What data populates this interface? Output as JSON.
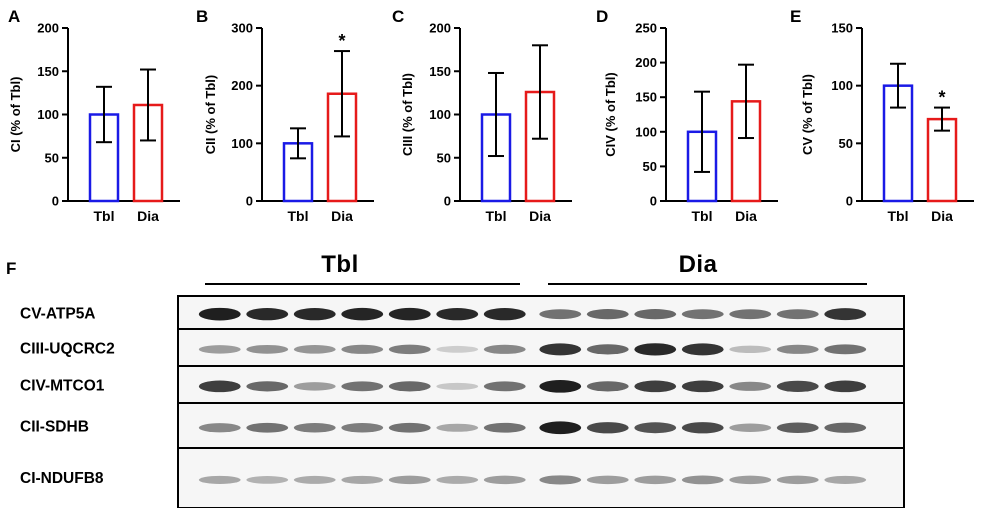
{
  "chart_data": [
    {
      "type": "bar",
      "panel": "A",
      "ylabel": "CI (% of Tbl)",
      "categories": [
        "Tbl",
        "Dia"
      ],
      "values": [
        100,
        111
      ],
      "errors": [
        32,
        41
      ],
      "ylim": [
        0,
        200
      ],
      "yticks": [
        0,
        50,
        100,
        150,
        200
      ],
      "significance": [
        "",
        ""
      ],
      "bar_colors": [
        "#1a1ae6",
        "#e61a1a"
      ]
    },
    {
      "type": "bar",
      "panel": "B",
      "ylabel": "CII (% of Tbl)",
      "categories": [
        "Tbl",
        "Dia"
      ],
      "values": [
        100,
        186
      ],
      "errors": [
        26,
        74
      ],
      "ylim": [
        0,
        300
      ],
      "yticks": [
        0,
        100,
        200,
        300
      ],
      "significance": [
        "",
        "*"
      ],
      "bar_colors": [
        "#1a1ae6",
        "#e61a1a"
      ]
    },
    {
      "type": "bar",
      "panel": "C",
      "ylabel": "CIII (% of Tbl)",
      "categories": [
        "Tbl",
        "Dia"
      ],
      "values": [
        100,
        126
      ],
      "errors": [
        48,
        54
      ],
      "ylim": [
        0,
        200
      ],
      "yticks": [
        0,
        50,
        100,
        150,
        200
      ],
      "significance": [
        "",
        ""
      ],
      "bar_colors": [
        "#1a1ae6",
        "#e61a1a"
      ]
    },
    {
      "type": "bar",
      "panel": "D",
      "ylabel": "CIV (% of Tbl)",
      "categories": [
        "Tbl",
        "Dia"
      ],
      "values": [
        100,
        144
      ],
      "errors": [
        58,
        53
      ],
      "ylim": [
        0,
        250
      ],
      "yticks": [
        0,
        50,
        100,
        150,
        200,
        250
      ],
      "significance": [
        "",
        ""
      ],
      "bar_colors": [
        "#1a1ae6",
        "#e61a1a"
      ]
    },
    {
      "type": "bar",
      "panel": "E",
      "ylabel": "CV (% of Tbl)",
      "categories": [
        "Tbl",
        "Dia"
      ],
      "values": [
        100,
        71
      ],
      "errors": [
        19,
        10
      ],
      "ylim": [
        0,
        150
      ],
      "yticks": [
        0,
        50,
        100,
        150
      ],
      "significance": [
        "",
        "*"
      ],
      "bar_colors": [
        "#1a1ae6",
        "#e61a1a"
      ]
    }
  ],
  "blot": {
    "panel": "F",
    "group_labels": [
      "Tbl",
      "Dia"
    ],
    "lanes_per_group": 7,
    "rows": [
      {
        "label": "CV-ATP5A",
        "tbl": [
          0.95,
          0.9,
          0.9,
          0.92,
          0.92,
          0.9,
          0.9
        ],
        "dia": [
          0.55,
          0.6,
          0.6,
          0.55,
          0.55,
          0.55,
          0.85
        ]
      },
      {
        "label": "CIII-UQCRC2",
        "tbl": [
          0.35,
          0.4,
          0.38,
          0.45,
          0.5,
          0.12,
          0.45
        ],
        "dia": [
          0.85,
          0.6,
          0.9,
          0.85,
          0.2,
          0.45,
          0.55
        ]
      },
      {
        "label": "CIV-MTCO1",
        "tbl": [
          0.8,
          0.6,
          0.35,
          0.55,
          0.6,
          0.15,
          0.55
        ],
        "dia": [
          0.95,
          0.6,
          0.8,
          0.8,
          0.45,
          0.75,
          0.8
        ]
      },
      {
        "label": "CII-SDHB",
        "tbl": [
          0.45,
          0.55,
          0.5,
          0.5,
          0.55,
          0.3,
          0.55
        ],
        "dia": [
          0.95,
          0.75,
          0.7,
          0.75,
          0.35,
          0.65,
          0.6
        ]
      },
      {
        "label": "CI-NDUFB8",
        "tbl": [
          0.3,
          0.25,
          0.28,
          0.3,
          0.35,
          0.28,
          0.35
        ],
        "dia": [
          0.45,
          0.35,
          0.35,
          0.4,
          0.35,
          0.35,
          0.3
        ]
      }
    ]
  }
}
